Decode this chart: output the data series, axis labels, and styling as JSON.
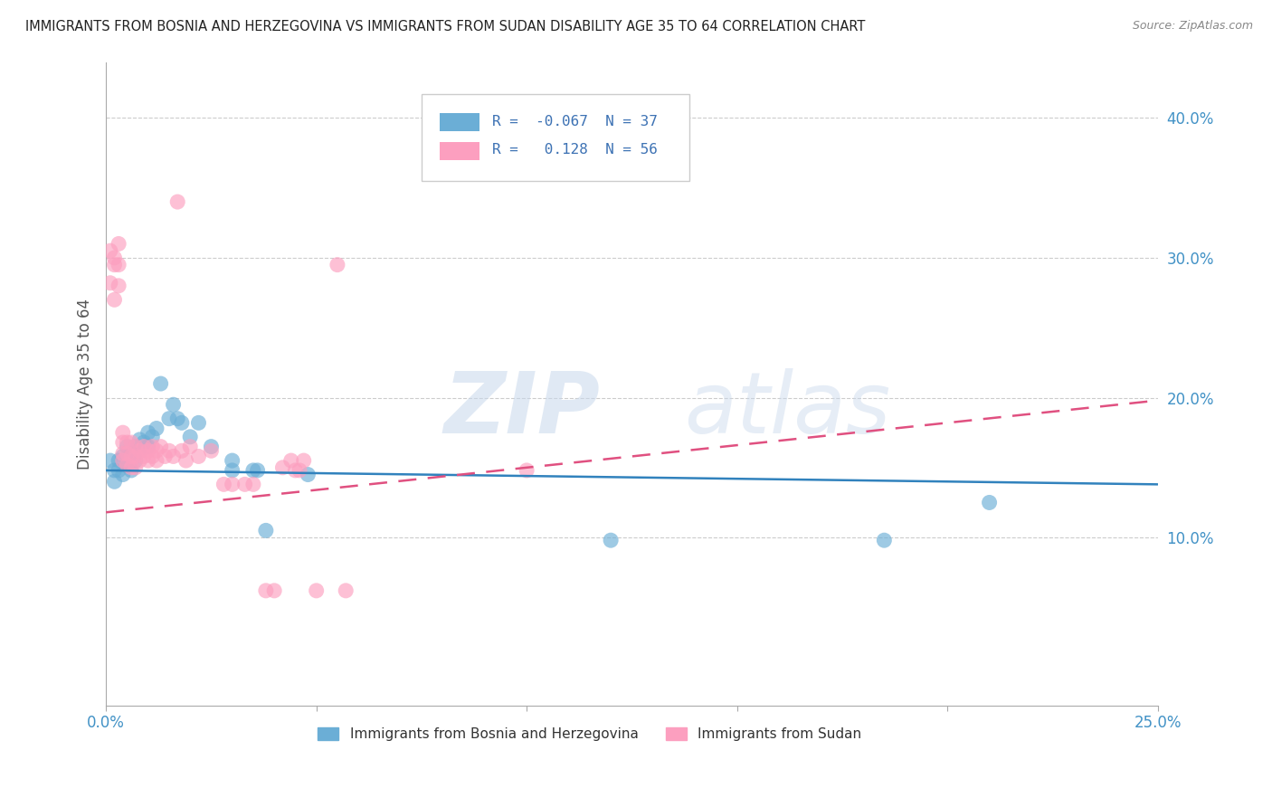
{
  "title": "IMMIGRANTS FROM BOSNIA AND HERZEGOVINA VS IMMIGRANTS FROM SUDAN DISABILITY AGE 35 TO 64 CORRELATION CHART",
  "source": "Source: ZipAtlas.com",
  "ylabel": "Disability Age 35 to 64",
  "legend_label_blue": "Immigrants from Bosnia and Herzegovina",
  "legend_label_pink": "Immigrants from Sudan",
  "R_blue": -0.067,
  "N_blue": 37,
  "R_pink": 0.128,
  "N_pink": 56,
  "xlim": [
    0.0,
    0.25
  ],
  "ylim": [
    -0.02,
    0.44
  ],
  "yticks": [
    0.1,
    0.2,
    0.3,
    0.4
  ],
  "ytick_labels": [
    "10.0%",
    "20.0%",
    "30.0%",
    "40.0%"
  ],
  "xtick_labels_bottom": [
    "0.0%",
    "25.0%"
  ],
  "xticks_bottom": [
    0.0,
    0.25
  ],
  "watermark_zip": "ZIP",
  "watermark_atlas": "atlas",
  "blue_color": "#6baed6",
  "pink_color": "#fc9fbf",
  "blue_line_color": "#3182bd",
  "pink_line_color": "#e05080",
  "blue_scatter": [
    [
      0.001,
      0.155
    ],
    [
      0.002,
      0.148
    ],
    [
      0.002,
      0.14
    ],
    [
      0.003,
      0.155
    ],
    [
      0.003,
      0.148
    ],
    [
      0.004,
      0.158
    ],
    [
      0.004,
      0.145
    ],
    [
      0.005,
      0.165
    ],
    [
      0.005,
      0.152
    ],
    [
      0.006,
      0.16
    ],
    [
      0.006,
      0.148
    ],
    [
      0.007,
      0.165
    ],
    [
      0.007,
      0.155
    ],
    [
      0.008,
      0.17
    ],
    [
      0.008,
      0.162
    ],
    [
      0.009,
      0.168
    ],
    [
      0.01,
      0.175
    ],
    [
      0.01,
      0.165
    ],
    [
      0.011,
      0.172
    ],
    [
      0.012,
      0.178
    ],
    [
      0.013,
      0.21
    ],
    [
      0.015,
      0.185
    ],
    [
      0.016,
      0.195
    ],
    [
      0.017,
      0.185
    ],
    [
      0.018,
      0.182
    ],
    [
      0.02,
      0.172
    ],
    [
      0.022,
      0.182
    ],
    [
      0.025,
      0.165
    ],
    [
      0.03,
      0.155
    ],
    [
      0.03,
      0.148
    ],
    [
      0.035,
      0.148
    ],
    [
      0.036,
      0.148
    ],
    [
      0.038,
      0.105
    ],
    [
      0.048,
      0.145
    ],
    [
      0.12,
      0.098
    ],
    [
      0.185,
      0.098
    ],
    [
      0.21,
      0.125
    ]
  ],
  "pink_scatter": [
    [
      0.001,
      0.305
    ],
    [
      0.001,
      0.282
    ],
    [
      0.002,
      0.3
    ],
    [
      0.002,
      0.295
    ],
    [
      0.002,
      0.27
    ],
    [
      0.003,
      0.31
    ],
    [
      0.003,
      0.295
    ],
    [
      0.003,
      0.28
    ],
    [
      0.004,
      0.175
    ],
    [
      0.004,
      0.168
    ],
    [
      0.004,
      0.16
    ],
    [
      0.004,
      0.155
    ],
    [
      0.005,
      0.168
    ],
    [
      0.005,
      0.16
    ],
    [
      0.005,
      0.152
    ],
    [
      0.006,
      0.168
    ],
    [
      0.006,
      0.158
    ],
    [
      0.006,
      0.15
    ],
    [
      0.007,
      0.165
    ],
    [
      0.007,
      0.158
    ],
    [
      0.007,
      0.15
    ],
    [
      0.008,
      0.162
    ],
    [
      0.008,
      0.155
    ],
    [
      0.009,
      0.165
    ],
    [
      0.009,
      0.158
    ],
    [
      0.01,
      0.162
    ],
    [
      0.01,
      0.155
    ],
    [
      0.011,
      0.165
    ],
    [
      0.011,
      0.158
    ],
    [
      0.012,
      0.162
    ],
    [
      0.012,
      0.155
    ],
    [
      0.013,
      0.165
    ],
    [
      0.014,
      0.158
    ],
    [
      0.015,
      0.162
    ],
    [
      0.016,
      0.158
    ],
    [
      0.017,
      0.34
    ],
    [
      0.018,
      0.162
    ],
    [
      0.019,
      0.155
    ],
    [
      0.02,
      0.165
    ],
    [
      0.022,
      0.158
    ],
    [
      0.025,
      0.162
    ],
    [
      0.028,
      0.138
    ],
    [
      0.03,
      0.138
    ],
    [
      0.033,
      0.138
    ],
    [
      0.035,
      0.138
    ],
    [
      0.038,
      0.062
    ],
    [
      0.04,
      0.062
    ],
    [
      0.042,
      0.15
    ],
    [
      0.044,
      0.155
    ],
    [
      0.045,
      0.148
    ],
    [
      0.046,
      0.148
    ],
    [
      0.047,
      0.155
    ],
    [
      0.05,
      0.062
    ],
    [
      0.055,
      0.295
    ],
    [
      0.057,
      0.062
    ],
    [
      0.1,
      0.148
    ]
  ]
}
